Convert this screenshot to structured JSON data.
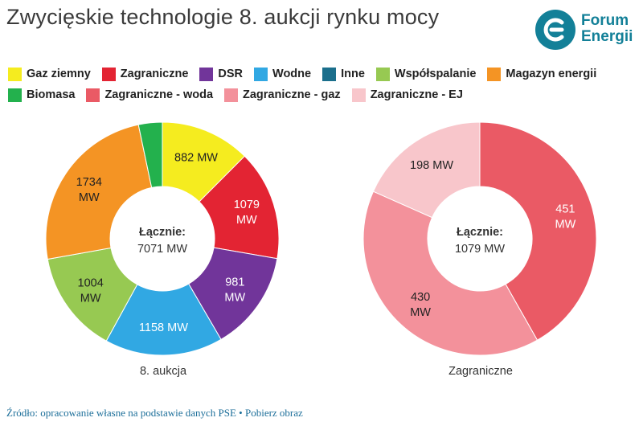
{
  "title": "Zwycięskie technologie 8. aukcji rynku mocy",
  "logo": {
    "line1": "Forum",
    "line2": "Energii",
    "color": "#138098"
  },
  "legend": {
    "rows": [
      [
        {
          "label": "Gaz ziemny",
          "color": "#f5ec1f"
        },
        {
          "label": "Zagraniczne",
          "color": "#e32433"
        },
        {
          "label": "DSR",
          "color": "#71359a"
        },
        {
          "label": "Wodne",
          "color": "#31a8e3"
        },
        {
          "label": "Inne",
          "color": "#1b6f8c"
        },
        {
          "label": "Współspalanie",
          "color": "#97c952"
        },
        {
          "label": "Magazyn energii",
          "color": "#f49424"
        }
      ],
      [
        {
          "label": "Biomasa",
          "color": "#23b14d"
        },
        {
          "label": "Zagraniczne - woda",
          "color": "#ea5a65"
        },
        {
          "label": "Zagraniczne - gaz",
          "color": "#f3919b"
        },
        {
          "label": "Zagraniczne - EJ",
          "color": "#f8c6cb"
        }
      ]
    ]
  },
  "chart_data": [
    {
      "type": "pie",
      "donut": true,
      "caption": "8. aukcja",
      "center_label": "Łącznie:",
      "center_value": "7071 MW",
      "slices": [
        {
          "category": "Gaz ziemny",
          "value": 882,
          "label": "882 MW",
          "color": "#f5ec1f",
          "text_color": "#222222"
        },
        {
          "category": "Zagraniczne",
          "value": 1079,
          "label": "1079\nMW",
          "color": "#e32433",
          "text_color": "#ffffff"
        },
        {
          "category": "DSR",
          "value": 981,
          "label": "981\nMW",
          "color": "#71359a",
          "text_color": "#ffffff"
        },
        {
          "category": "Wodne",
          "value": 1158,
          "label": "1158 MW",
          "color": "#31a8e3",
          "text_color": "#ffffff"
        },
        {
          "category": "Współspalanie",
          "value": 1004,
          "label": "1004\nMW",
          "color": "#97c952",
          "text_color": "#222222"
        },
        {
          "category": "Magazyn energii",
          "value": 1734,
          "label": "1734\nMW",
          "color": "#f49424",
          "text_color": "#222222"
        },
        {
          "category": "Biomasa",
          "value": 233,
          "label": "",
          "color": "#23b14d",
          "text_color": "#222222"
        }
      ]
    },
    {
      "type": "pie",
      "donut": true,
      "caption": "Zagraniczne",
      "center_label": "Łącznie:",
      "center_value": "1079 MW",
      "slices": [
        {
          "category": "Zagraniczne - woda",
          "value": 451,
          "label": "451\nMW",
          "color": "#ea5a65",
          "text_color": "#ffffff"
        },
        {
          "category": "Zagraniczne - gaz",
          "value": 430,
          "label": "430\nMW",
          "color": "#f3919b",
          "text_color": "#222222"
        },
        {
          "category": "Zagraniczne - EJ",
          "value": 198,
          "label": "198 MW",
          "color": "#f8c6cb",
          "text_color": "#222222"
        }
      ]
    }
  ],
  "source": "Źródło: opracowanie własne na podstawie danych PSE • Pobierz obraz"
}
